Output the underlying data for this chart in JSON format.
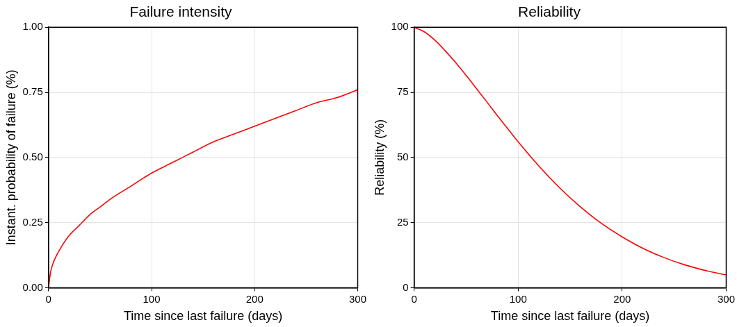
{
  "chart_data": [
    {
      "type": "line",
      "title": "Failure intensity",
      "xlabel": "Time since last failure (days)",
      "ylabel": "Instant. probability of failure (%)",
      "x": [
        0,
        2,
        5,
        10,
        20,
        30,
        40,
        50,
        60,
        80,
        100,
        120,
        140,
        160,
        180,
        200,
        220,
        240,
        260,
        280,
        300
      ],
      "series": [
        {
          "color": "#ff0000",
          "values": [
            0,
            0.06,
            0.1,
            0.14,
            0.2,
            0.24,
            0.28,
            0.31,
            0.34,
            0.39,
            0.44,
            0.48,
            0.52,
            0.56,
            0.59,
            0.62,
            0.65,
            0.68,
            0.71,
            0.73,
            0.76
          ]
        }
      ],
      "xlim": [
        0,
        300
      ],
      "xticks": [
        0,
        100,
        200,
        300
      ],
      "ylim": [
        0,
        1
      ],
      "yticks": [
        {
          "value": 0,
          "label": "0.00"
        },
        {
          "value": 0.25,
          "label": "0.25"
        },
        {
          "value": 0.5,
          "label": "0.50"
        },
        {
          "value": 0.75,
          "label": "0.75"
        },
        {
          "value": 1,
          "label": "1.00"
        }
      ],
      "grid": true,
      "legend": false,
      "marker": "none",
      "line_style": "solid"
    },
    {
      "type": "line",
      "title": "Reliability",
      "xlabel": "Time since last failure (days)",
      "ylabel": "Reliability (%)",
      "x": [
        0,
        10,
        20,
        30,
        40,
        50,
        60,
        70,
        80,
        90,
        100,
        120,
        140,
        160,
        180,
        200,
        220,
        240,
        260,
        280,
        300
      ],
      "series": [
        {
          "color": "#ff0000",
          "values": [
            100,
            98.2,
            95,
            90.9,
            86.4,
            81.5,
            76.4,
            71.3,
            66.1,
            61,
            56,
            46.7,
            38.3,
            31,
            24.7,
            19.5,
            15.1,
            11.6,
            8.8,
            6.6,
            4.9
          ]
        }
      ],
      "xlim": [
        0,
        300
      ],
      "xticks": [
        0,
        100,
        200,
        300
      ],
      "ylim": [
        0,
        100
      ],
      "yticks": [
        0,
        25,
        50,
        75,
        100
      ],
      "grid": true,
      "legend": false,
      "marker": "none",
      "line_style": "solid"
    }
  ]
}
